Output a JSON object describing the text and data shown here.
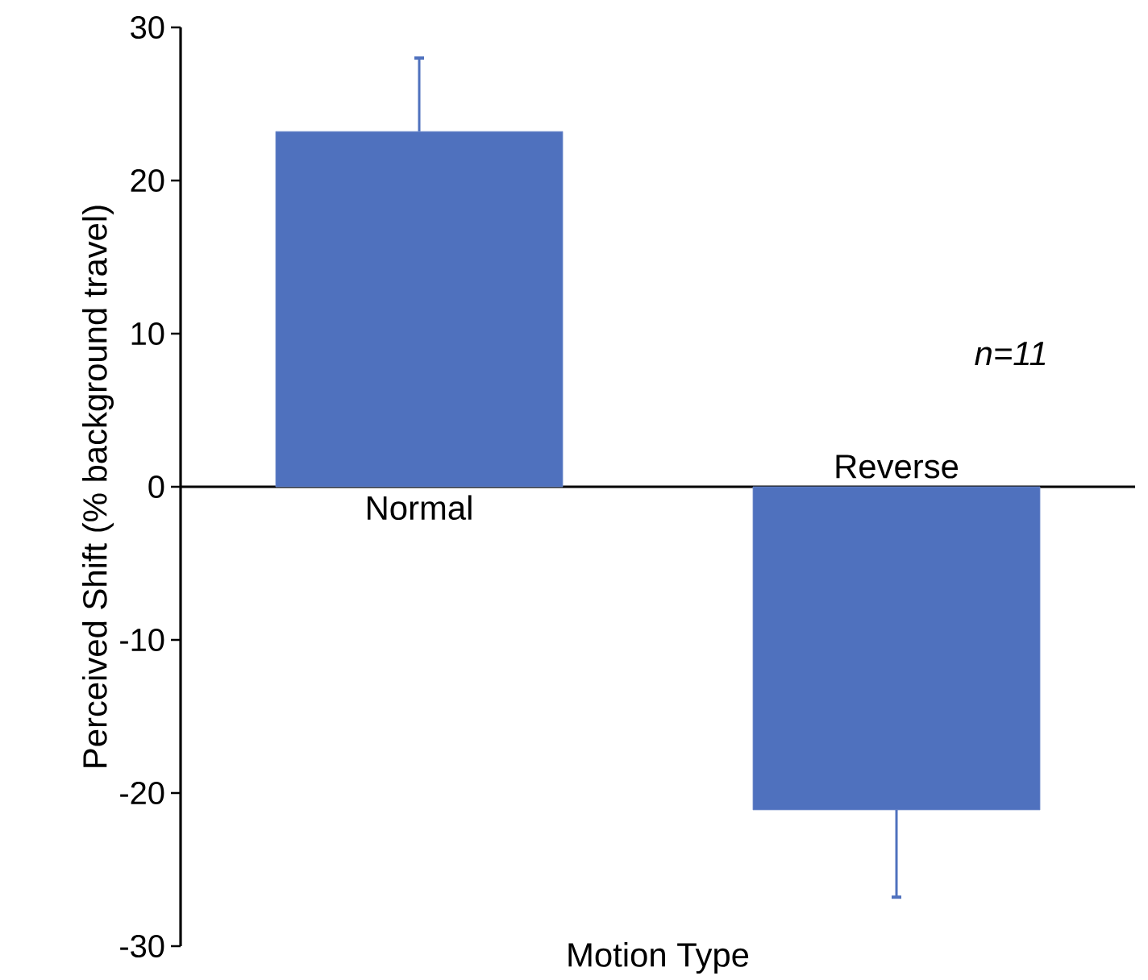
{
  "chart_data": {
    "type": "bar",
    "xlabel": "Motion Type",
    "ylabel": "Perceived Shift (% background travel)",
    "categories": [
      "Normal",
      "Reverse"
    ],
    "values": [
      23.2,
      -21.1
    ],
    "color": "#4f71be",
    "errors": [
      [
        23.2,
        28.0
      ],
      [
        -26.8,
        -21.1
      ]
    ],
    "ylim": [
      -30,
      30
    ],
    "yticks": [
      -30,
      -20,
      -10,
      0,
      10,
      20,
      30
    ],
    "annotations": [
      "n=11"
    ]
  }
}
